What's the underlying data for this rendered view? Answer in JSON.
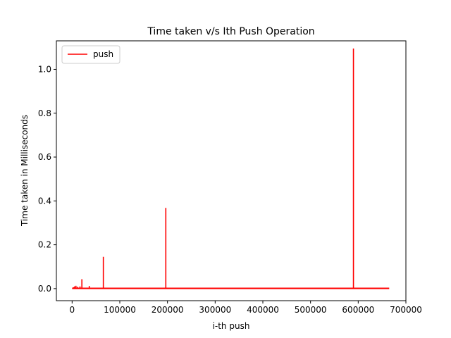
{
  "chart_data": {
    "type": "line",
    "title": "Time taken v/s Ith Push Operation",
    "xlabel": "i-th push",
    "ylabel": "Time taken in Milliseconds",
    "xlim": [
      -33000,
      700000
    ],
    "ylim": [
      -0.055,
      1.13
    ],
    "xticks": [
      0,
      100000,
      200000,
      300000,
      400000,
      500000,
      600000,
      700000
    ],
    "xtick_labels": [
      "0",
      "100000",
      "200000",
      "300000",
      "400000",
      "500000",
      "600000",
      "700000"
    ],
    "yticks": [
      0.0,
      0.2,
      0.4,
      0.6,
      0.8,
      1.0
    ],
    "ytick_labels": [
      "0.0",
      "0.2",
      "0.4",
      "0.6",
      "0.8",
      "1.0"
    ],
    "grid": false,
    "legend": {
      "position": "upper-left",
      "entries": [
        "push"
      ]
    },
    "series": [
      {
        "name": "push",
        "color": "#ff0000",
        "baseline": 0.001,
        "x_range": [
          0,
          665000
        ],
        "spikes": [
          {
            "x": 3000,
            "y": 0.006
          },
          {
            "x": 5000,
            "y": 0.01
          },
          {
            "x": 8000,
            "y": 0.013
          },
          {
            "x": 11000,
            "y": 0.008
          },
          {
            "x": 16500,
            "y": 0.01
          },
          {
            "x": 20500,
            "y": 0.043
          },
          {
            "x": 36000,
            "y": 0.012
          },
          {
            "x": 65500,
            "y": 0.145
          },
          {
            "x": 196500,
            "y": 0.368
          },
          {
            "x": 590000,
            "y": 1.095
          }
        ]
      }
    ]
  }
}
